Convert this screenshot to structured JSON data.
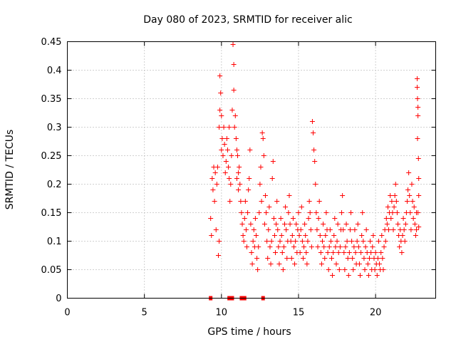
{
  "chart_data": {
    "type": "scatter",
    "title": "Day 080 of 2023, SRMTID for receiver alic",
    "xlabel": "GPS time / hours",
    "ylabel": "SRMTID / TECUs",
    "xlim": [
      0,
      23.9
    ],
    "ylim": [
      0,
      0.45
    ],
    "x_ticks": [
      "0",
      "5",
      "10",
      "15",
      "20"
    ],
    "y_ticks": [
      "0",
      "0.05",
      "0.1",
      "0.15",
      "0.2",
      "0.25",
      "0.3",
      "0.35",
      "0.4",
      "0.45"
    ],
    "grid": true,
    "marker": "plus",
    "color": "#ff0000",
    "legend": "none",
    "series": [
      {
        "values": [
          [
            9.3,
            0.14
          ],
          [
            9.35,
            0.11
          ],
          [
            9.4,
            0.21
          ],
          [
            9.45,
            0.19
          ],
          [
            9.5,
            0.23
          ],
          [
            9.55,
            0.17
          ],
          [
            9.6,
            0.22
          ],
          [
            9.65,
            0.12
          ],
          [
            9.7,
            0.2
          ],
          [
            9.75,
            0.23
          ],
          [
            9.8,
            0.075
          ],
          [
            9.85,
            0.1
          ],
          [
            9.85,
            0.3
          ],
          [
            9.9,
            0.39
          ],
          [
            9.95,
            0.36
          ],
          [
            9.9,
            0.33
          ],
          [
            10.0,
            0.32
          ],
          [
            10.0,
            0.26
          ],
          [
            10.05,
            0.28
          ],
          [
            10.1,
            0.25
          ],
          [
            10.15,
            0.3
          ],
          [
            10.2,
            0.27
          ],
          [
            10.25,
            0.22
          ],
          [
            10.3,
            0.24
          ],
          [
            10.35,
            0.28
          ],
          [
            10.4,
            0.26
          ],
          [
            10.45,
            0.23
          ],
          [
            10.5,
            0.3
          ],
          [
            10.5,
            0.21
          ],
          [
            10.55,
            0.17
          ],
          [
            10.6,
            0.2
          ],
          [
            10.65,
            0.25
          ],
          [
            10.7,
            0.33
          ],
          [
            10.75,
            0.445
          ],
          [
            10.8,
            0.41
          ],
          [
            10.8,
            0.365
          ],
          [
            10.85,
            0.3
          ],
          [
            10.9,
            0.32
          ],
          [
            10.95,
            0.28
          ],
          [
            11.0,
            0.26
          ],
          [
            11.0,
            0.21
          ],
          [
            11.05,
            0.25
          ],
          [
            11.1,
            0.22
          ],
          [
            11.1,
            0.19
          ],
          [
            11.15,
            0.23
          ],
          [
            11.2,
            0.2
          ],
          [
            11.25,
            0.17
          ],
          [
            11.3,
            0.15
          ],
          [
            11.35,
            0.13
          ],
          [
            11.4,
            0.11
          ],
          [
            11.45,
            0.1
          ],
          [
            11.5,
            0.14
          ],
          [
            11.55,
            0.17
          ],
          [
            11.6,
            0.12
          ],
          [
            11.65,
            0.09
          ],
          [
            11.7,
            0.15
          ],
          [
            11.75,
            0.19
          ],
          [
            11.8,
            0.21
          ],
          [
            11.85,
            0.26
          ],
          [
            11.9,
            0.13
          ],
          [
            11.95,
            0.08
          ],
          [
            12.0,
            0.06
          ],
          [
            12.05,
            0.1
          ],
          [
            12.1,
            0.12
          ],
          [
            12.15,
            0.09
          ],
          [
            12.2,
            0.14
          ],
          [
            12.25,
            0.11
          ],
          [
            12.3,
            0.07
          ],
          [
            12.35,
            0.05
          ],
          [
            12.4,
            0.09
          ],
          [
            12.45,
            0.15
          ],
          [
            12.5,
            0.2
          ],
          [
            12.55,
            0.23
          ],
          [
            12.6,
            0.17
          ],
          [
            12.65,
            0.29
          ],
          [
            12.7,
            0.28
          ],
          [
            12.75,
            0.25
          ],
          [
            12.8,
            0.13
          ],
          [
            12.85,
            0.18
          ],
          [
            12.9,
            0.15
          ],
          [
            12.95,
            0.1
          ],
          [
            13.0,
            0.07
          ],
          [
            13.05,
            0.12
          ],
          [
            13.1,
            0.16
          ],
          [
            13.15,
            0.09
          ],
          [
            13.2,
            0.06
          ],
          [
            13.25,
            0.1
          ],
          [
            13.3,
            0.21
          ],
          [
            13.35,
            0.24
          ],
          [
            13.4,
            0.14
          ],
          [
            13.45,
            0.11
          ],
          [
            13.5,
            0.08
          ],
          [
            13.55,
            0.13
          ],
          [
            13.6,
            0.17
          ],
          [
            13.65,
            0.12
          ],
          [
            13.7,
            0.09
          ],
          [
            13.75,
            0.06
          ],
          [
            13.8,
            0.1
          ],
          [
            13.85,
            0.14
          ],
          [
            13.9,
            0.11
          ],
          [
            13.95,
            0.08
          ],
          [
            14.0,
            0.05
          ],
          [
            14.05,
            0.09
          ],
          [
            14.1,
            0.13
          ],
          [
            14.15,
            0.16
          ],
          [
            14.2,
            0.12
          ],
          [
            14.25,
            0.07
          ],
          [
            14.3,
            0.1
          ],
          [
            14.35,
            0.15
          ],
          [
            14.4,
            0.18
          ],
          [
            14.45,
            0.13
          ],
          [
            14.5,
            0.1
          ],
          [
            14.55,
            0.07
          ],
          [
            14.6,
            0.11
          ],
          [
            14.65,
            0.14
          ],
          [
            14.7,
            0.09
          ],
          [
            14.75,
            0.06
          ],
          [
            14.8,
            0.1
          ],
          [
            14.85,
            0.13
          ],
          [
            14.9,
            0.08
          ],
          [
            14.95,
            0.12
          ],
          [
            15.0,
            0.15
          ],
          [
            15.05,
            0.11
          ],
          [
            15.1,
            0.08
          ],
          [
            15.15,
            0.12
          ],
          [
            15.2,
            0.16
          ],
          [
            15.25,
            0.1
          ],
          [
            15.3,
            0.07
          ],
          [
            15.35,
            0.09
          ],
          [
            15.4,
            0.13
          ],
          [
            15.45,
            0.11
          ],
          [
            15.5,
            0.08
          ],
          [
            15.55,
            0.06
          ],
          [
            15.6,
            0.1
          ],
          [
            15.65,
            0.14
          ],
          [
            15.7,
            0.17
          ],
          [
            15.75,
            0.15
          ],
          [
            15.8,
            0.12
          ],
          [
            15.85,
            0.09
          ],
          [
            15.9,
            0.31
          ],
          [
            15.95,
            0.29
          ],
          [
            16.0,
            0.26
          ],
          [
            16.05,
            0.24
          ],
          [
            16.1,
            0.2
          ],
          [
            16.15,
            0.15
          ],
          [
            16.2,
            0.12
          ],
          [
            16.25,
            0.09
          ],
          [
            16.3,
            0.14
          ],
          [
            16.35,
            0.17
          ],
          [
            16.4,
            0.11
          ],
          [
            16.45,
            0.08
          ],
          [
            16.5,
            0.06
          ],
          [
            16.55,
            0.1
          ],
          [
            16.6,
            0.13
          ],
          [
            16.65,
            0.09
          ],
          [
            16.7,
            0.07
          ],
          [
            16.75,
            0.11
          ],
          [
            16.8,
            0.15
          ],
          [
            16.85,
            0.12
          ],
          [
            16.9,
            0.08
          ],
          [
            16.95,
            0.05
          ],
          [
            17.0,
            0.09
          ],
          [
            17.05,
            0.12
          ],
          [
            17.1,
            0.1
          ],
          [
            17.15,
            0.07
          ],
          [
            17.2,
            0.04
          ],
          [
            17.25,
            0.08
          ],
          [
            17.3,
            0.11
          ],
          [
            17.35,
            0.14
          ],
          [
            17.4,
            0.09
          ],
          [
            17.45,
            0.06
          ],
          [
            17.5,
            0.1
          ],
          [
            17.55,
            0.13
          ],
          [
            17.6,
            0.08
          ],
          [
            17.65,
            0.05
          ],
          [
            17.7,
            0.09
          ],
          [
            17.75,
            0.12
          ],
          [
            17.8,
            0.15
          ],
          [
            17.85,
            0.18
          ],
          [
            17.9,
            0.12
          ],
          [
            17.95,
            0.08
          ],
          [
            18.0,
            0.05
          ],
          [
            18.05,
            0.09
          ],
          [
            18.1,
            0.13
          ],
          [
            18.15,
            0.1
          ],
          [
            18.2,
            0.07
          ],
          [
            18.25,
            0.04
          ],
          [
            18.3,
            0.08
          ],
          [
            18.35,
            0.12
          ],
          [
            18.4,
            0.15
          ],
          [
            18.45,
            0.1
          ],
          [
            18.5,
            0.07
          ],
          [
            18.55,
            0.05
          ],
          [
            18.6,
            0.09
          ],
          [
            18.65,
            0.12
          ],
          [
            18.7,
            0.08
          ],
          [
            18.75,
            0.06
          ],
          [
            18.8,
            0.1
          ],
          [
            18.85,
            0.13
          ],
          [
            18.9,
            0.09
          ],
          [
            18.95,
            0.06
          ],
          [
            19.0,
            0.04
          ],
          [
            19.05,
            0.08
          ],
          [
            19.1,
            0.11
          ],
          [
            19.15,
            0.15
          ],
          [
            19.2,
            0.1
          ],
          [
            19.25,
            0.07
          ],
          [
            19.3,
            0.05
          ],
          [
            19.35,
            0.09
          ],
          [
            19.4,
            0.12
          ],
          [
            19.45,
            0.08
          ],
          [
            19.5,
            0.06
          ],
          [
            19.55,
            0.04
          ],
          [
            19.6,
            0.07
          ],
          [
            19.65,
            0.1
          ],
          [
            19.7,
            0.08
          ],
          [
            19.75,
            0.05
          ],
          [
            19.8,
            0.09
          ],
          [
            19.85,
            0.11
          ],
          [
            19.9,
            0.07
          ],
          [
            19.95,
            0.05
          ],
          [
            20.0,
            0.08
          ],
          [
            20.05,
            0.06
          ],
          [
            20.1,
            0.04
          ],
          [
            20.15,
            0.07
          ],
          [
            20.2,
            0.1
          ],
          [
            20.25,
            0.06
          ],
          [
            20.3,
            0.05
          ],
          [
            20.35,
            0.08
          ],
          [
            20.4,
            0.11
          ],
          [
            20.45,
            0.07
          ],
          [
            20.5,
            0.05
          ],
          [
            20.55,
            0.09
          ],
          [
            20.6,
            0.12
          ],
          [
            20.65,
            0.1
          ],
          [
            20.7,
            0.14
          ],
          [
            20.75,
            0.13
          ],
          [
            20.8,
            0.16
          ],
          [
            20.85,
            0.12
          ],
          [
            20.9,
            0.15
          ],
          [
            20.95,
            0.18
          ],
          [
            21.0,
            0.14
          ],
          [
            21.05,
            0.17
          ],
          [
            21.1,
            0.15
          ],
          [
            21.15,
            0.12
          ],
          [
            21.2,
            0.16
          ],
          [
            21.25,
            0.18
          ],
          [
            21.3,
            0.2
          ],
          [
            21.35,
            0.17
          ],
          [
            21.4,
            0.15
          ],
          [
            21.45,
            0.13
          ],
          [
            21.5,
            0.11
          ],
          [
            21.55,
            0.09
          ],
          [
            21.6,
            0.12
          ],
          [
            21.65,
            0.1
          ],
          [
            21.7,
            0.08
          ],
          [
            21.75,
            0.11
          ],
          [
            21.8,
            0.14
          ],
          [
            21.85,
            0.12
          ],
          [
            21.9,
            0.1
          ],
          [
            21.95,
            0.13
          ],
          [
            22.0,
            0.15
          ],
          [
            22.05,
            0.17
          ],
          [
            22.1,
            0.19
          ],
          [
            22.15,
            0.22
          ],
          [
            22.2,
            0.18
          ],
          [
            22.25,
            0.15
          ],
          [
            22.3,
            0.12
          ],
          [
            22.35,
            0.2
          ],
          [
            22.4,
            0.17
          ],
          [
            22.45,
            0.14
          ],
          [
            22.5,
            0.16
          ],
          [
            22.55,
            0.13
          ],
          [
            22.6,
            0.11
          ],
          [
            22.65,
            0.15
          ],
          [
            22.7,
            0.385
          ],
          [
            22.7,
            0.37
          ],
          [
            22.72,
            0.35
          ],
          [
            22.75,
            0.335
          ],
          [
            22.75,
            0.32
          ],
          [
            22.72,
            0.28
          ],
          [
            22.78,
            0.245
          ],
          [
            22.8,
            0.21
          ],
          [
            22.8,
            0.18
          ],
          [
            22.75,
            0.15
          ],
          [
            22.8,
            0.125
          ],
          [
            22.65,
            0.12
          ]
        ]
      },
      {
        "name": "",
        "values": [
          [
            9.3,
            0.0
          ],
          [
            10.5,
            0.0
          ],
          [
            10.6,
            0.0
          ],
          [
            10.7,
            0.0
          ],
          [
            11.3,
            0.0
          ],
          [
            11.4,
            0.0
          ],
          [
            11.5,
            0.0
          ],
          [
            12.7,
            0.0
          ]
        ]
      }
    ]
  }
}
